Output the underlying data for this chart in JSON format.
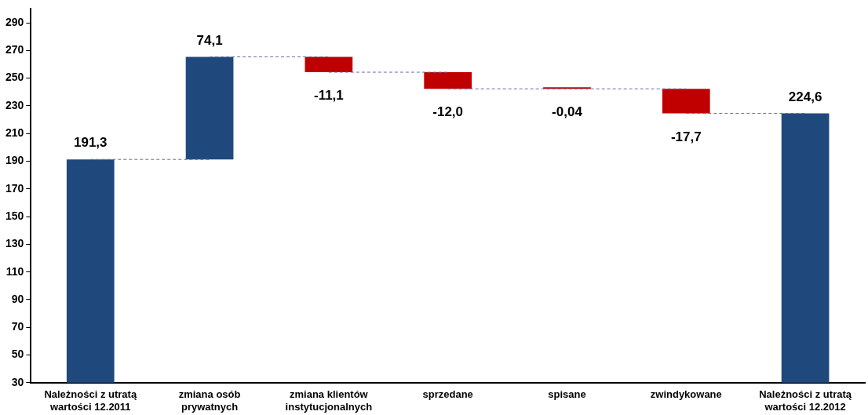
{
  "chart_data": {
    "type": "bar",
    "categories": [
      "Należności z utratą wartości 12.2011",
      "zmiana osób prywatnych",
      "zmiana klientów instytucjonalnych",
      "sprzedane",
      "spisane",
      "zwindykowane",
      "Należności z utratą wartości 12.2012"
    ],
    "values": [
      191.3,
      74.1,
      -11.1,
      -12.0,
      -0.04,
      -17.7,
      224.6
    ],
    "base": [
      null,
      191.3,
      265.4,
      254.3,
      242.3,
      242.3,
      null
    ],
    "colors": [
      "#1f497d",
      "#1f497d",
      "#c00000",
      "#c00000",
      "#c00000",
      "#c00000",
      "#1f497d"
    ],
    "value_labels": [
      "191,3",
      "74,1",
      "-11,1",
      "-12,0",
      "-0,04",
      "-17,7",
      "224,6"
    ],
    "series": [
      {
        "type": "line",
        "color": "#6b6b9e",
        "line_style": "dashed",
        "values": [
          191.3,
          191.3,
          null,
          null,
          null,
          null,
          null
        ]
      },
      {
        "type": "line",
        "color": "#6b6b9e",
        "line_style": "dashed",
        "values": [
          null,
          265.4,
          265.4,
          null,
          null,
          null,
          null
        ]
      },
      {
        "type": "line",
        "color": "#6b6b9e",
        "line_style": "dashed",
        "values": [
          null,
          null,
          254.3,
          254.3,
          null,
          null,
          null
        ]
      },
      {
        "type": "line",
        "color": "#6b6b9e",
        "line_style": "dashed",
        "values": [
          null,
          null,
          null,
          242.3,
          242.3,
          242.3,
          null
        ]
      },
      {
        "type": "line",
        "color": "#6b6b9e",
        "line_style": "dashed",
        "values": [
          null,
          null,
          null,
          null,
          null,
          224.6,
          224.6
        ]
      }
    ],
    "marker": "none",
    "ylim": [
      30,
      300
    ],
    "yticks": [
      30,
      50,
      70,
      90,
      110,
      130,
      150,
      170,
      190,
      210,
      230,
      250,
      270,
      290
    ],
    "grid": false,
    "legend": false
  }
}
